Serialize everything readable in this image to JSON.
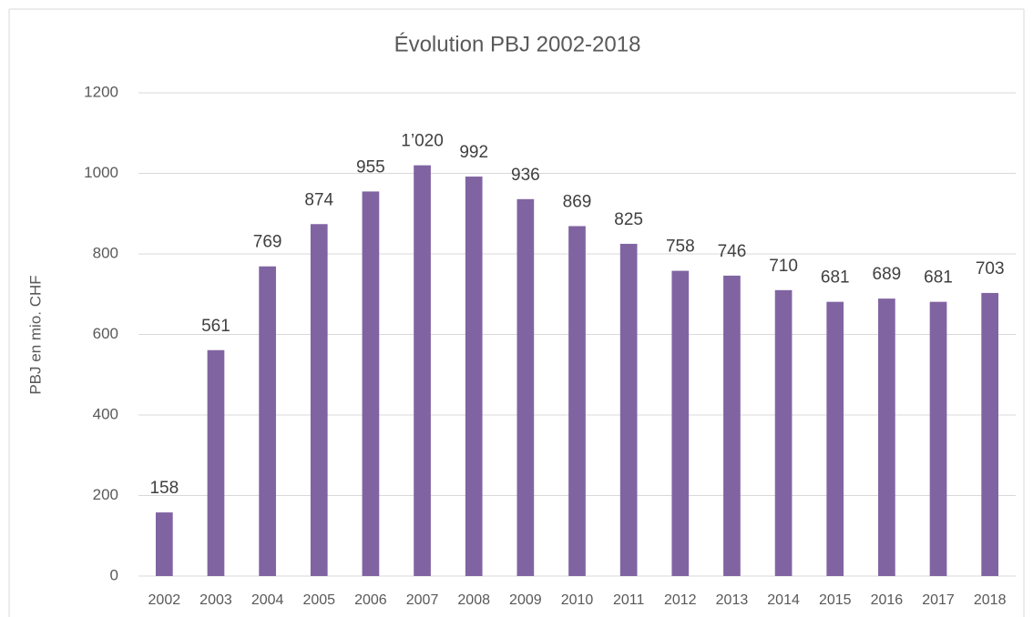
{
  "chart_data": {
    "type": "bar",
    "title": "Évolution PBJ 2002-2018",
    "y_label": "PBJ en mio. CHF",
    "categories": [
      "2002",
      "2003",
      "2004",
      "2005",
      "2006",
      "2007",
      "2008",
      "2009",
      "2010",
      "2011",
      "2012",
      "2013",
      "2014",
      "2015",
      "2016",
      "2017",
      "2018"
    ],
    "values": [
      158,
      561,
      769,
      874,
      955,
      1020,
      992,
      936,
      869,
      825,
      758,
      746,
      710,
      681,
      689,
      681,
      703
    ],
    "value_labels": [
      "158",
      "561",
      "769",
      "874",
      "955",
      "1’020",
      "992",
      "936",
      "869",
      "825",
      "758",
      "746",
      "710",
      "681",
      "689",
      "681",
      "703"
    ],
    "color": "#8064a2",
    "ylim": [
      0,
      1200
    ],
    "yticks": [
      0,
      200,
      400,
      600,
      800,
      1000,
      1200
    ],
    "grid": true
  }
}
